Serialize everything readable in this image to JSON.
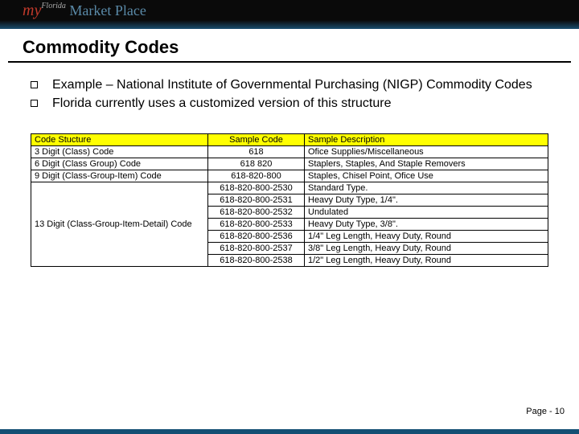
{
  "logo": {
    "my": "my",
    "florida": "Florida",
    "market": "Market Place"
  },
  "title": "Commodity Codes",
  "bullets": [
    "Example – National Institute of Governmental Purchasing (NIGP) Commodity Codes",
    "Florida currently uses a customized version of this structure"
  ],
  "table": {
    "header_bg": "#ffff00",
    "border_color": "#000000",
    "columns": [
      "Code Stucture",
      "Sample Code",
      "Sample Description"
    ],
    "rows": [
      {
        "structure": "3 Digit (Class) Code",
        "code": "618",
        "desc": "Ofice Supplies/Miscellaneous",
        "rowspan": 1
      },
      {
        "structure": "6 Digit (Class Group) Code",
        "code": "618 820",
        "desc": "Staplers, Staples, And Staple Removers",
        "rowspan": 1
      },
      {
        "structure": "9 Digit (Class-Group-Item) Code",
        "code": "618-820-800",
        "desc": "Staples, Chisel Point, Ofice Use",
        "rowspan": 1
      },
      {
        "structure": "13 Digit (Class-Group-Item-Detail) Code",
        "code": "618-820-800-2530",
        "desc": "Standard Type.",
        "rowspan": 7,
        "first": true
      },
      {
        "code": "618-820-800-2531",
        "desc": "Heavy Duty Type, 1/4\"."
      },
      {
        "code": "618-820-800-2532",
        "desc": "Undulated"
      },
      {
        "code": "618-820-800-2533",
        "desc": "Heavy Duty Type, 3/8\"."
      },
      {
        "code": "618-820-800-2536",
        "desc": "1/4\" Leg Length, Heavy Duty, Round"
      },
      {
        "code": "618-820-800-2537",
        "desc": "3/8\" Leg Length, Heavy Duty, Round"
      },
      {
        "code": "618-820-800-2538",
        "desc": "1/2\" Leg Length, Heavy Duty, Round"
      }
    ]
  },
  "footer": "Page - 10"
}
